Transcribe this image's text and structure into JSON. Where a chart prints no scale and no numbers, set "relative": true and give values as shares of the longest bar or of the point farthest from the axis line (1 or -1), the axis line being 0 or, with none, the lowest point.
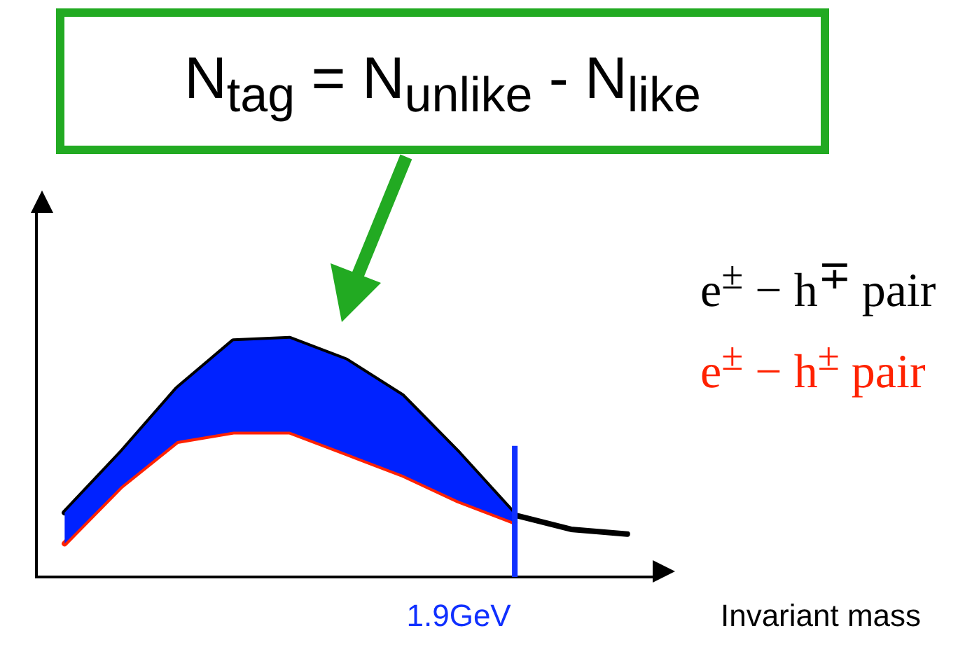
{
  "chart_data": {
    "type": "line",
    "title": "N$_{tag}$ = N$_{unlike}$ - N$_{like}$",
    "xlabel": "Invariant mass",
    "relative": true,
    "tick_labels": false,
    "grid": false,
    "legend": false,
    "marker": "none",
    "categories": [
      null,
      null,
      null,
      null,
      null,
      null,
      null,
      null,
      null,
      null,
      null
    ],
    "series": [
      {
        "type": "area",
        "color": "#0022ff",
        "values": [
          0.27,
          0.52,
          0.79,
          0.99,
          1,
          0.91,
          0.76,
          0.52,
          0.26,
          null,
          null
        ]
      },
      {
        "name": "e$^{±}$ − h$^{∓}$ pair",
        "color": "#000000",
        "values": [
          0.27,
          0.52,
          0.79,
          0.99,
          1,
          0.91,
          0.76,
          0.52,
          0.26,
          0.2,
          0.18
        ]
      },
      {
        "name": "e$^{±}$ − h$^{±}$ pair",
        "color": "#ff2200",
        "values": [
          0.14,
          0.38,
          0.57,
          0.61,
          0.61,
          0.52,
          0.43,
          0.32,
          0.23,
          null,
          null
        ]
      }
    ],
    "ref_lines": [
      {
        "axis": "x",
        "label": "1.9GeV",
        "color": "#1030ff"
      }
    ]
  }
}
